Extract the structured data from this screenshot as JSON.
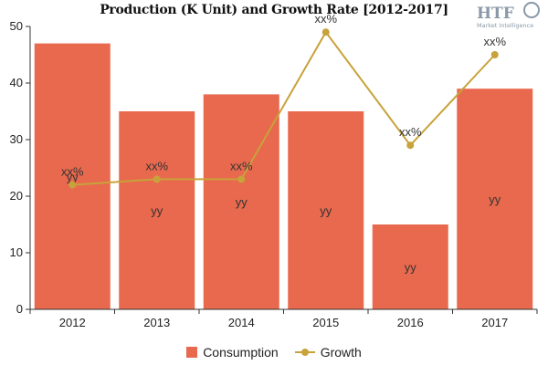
{
  "colors": {
    "consumption": "#E8694D",
    "growth": "#C8A23A",
    "axis": "#333333",
    "logo": "#8a98a8"
  },
  "logo": {
    "mark": "HTF",
    "tagline": "Market Intelligence"
  },
  "chart_data": {
    "type": "bar",
    "title": "Production (K Unit) and Growth Rate [2012-2017]",
    "categories": [
      "2012",
      "2013",
      "2014",
      "2015",
      "2016",
      "2017"
    ],
    "xlabel": "",
    "ylabel": "",
    "ylim": [
      0,
      50
    ],
    "yticks": [
      0,
      10,
      20,
      30,
      40,
      50
    ],
    "grid": false,
    "legend_position": "bottom",
    "series": [
      {
        "name": "Consumption",
        "type": "bar",
        "values": [
          47,
          35,
          38,
          35,
          15,
          39
        ],
        "labels": [
          "yy",
          "yy",
          "yy",
          "yy",
          "yy",
          "yy"
        ]
      },
      {
        "name": "Growth",
        "type": "line",
        "values": [
          22,
          23,
          23,
          49,
          29,
          45
        ],
        "labels": [
          "xx%",
          "xx%",
          "xx%",
          "xx%",
          "xx%",
          "xx%"
        ]
      }
    ]
  }
}
